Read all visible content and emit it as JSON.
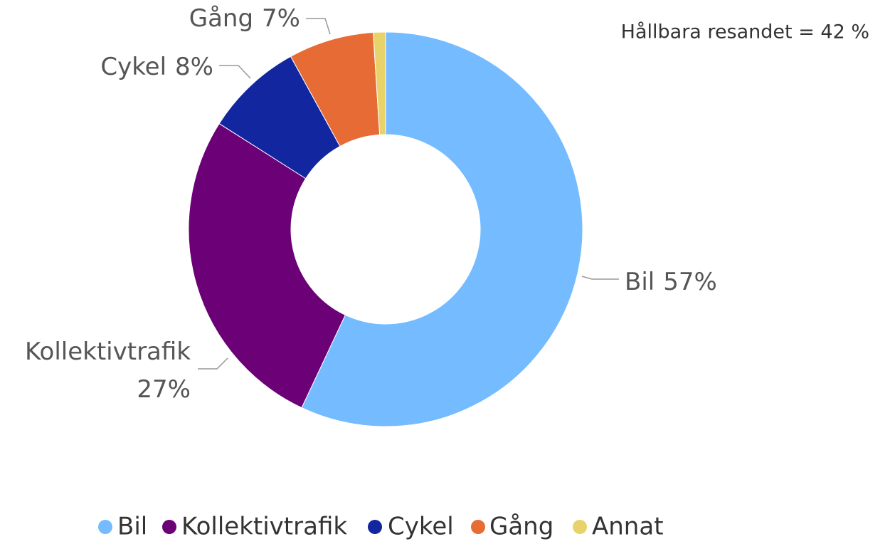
{
  "chart_data": {
    "type": "donut",
    "annotation": "Hållbara resandet = 42 %",
    "categories": [
      "Bil",
      "Kollektivtrafik",
      "Cykel",
      "Gång",
      "Annat"
    ],
    "values": [
      57,
      27,
      8,
      7,
      1
    ],
    "value_labels": [
      "57%",
      "27%",
      "8%",
      "7%",
      null
    ],
    "colors": [
      "#74bbff",
      "#6b0077",
      "#1226a0",
      "#e76b35",
      "#e8d36a"
    ],
    "legend": "bottom"
  }
}
